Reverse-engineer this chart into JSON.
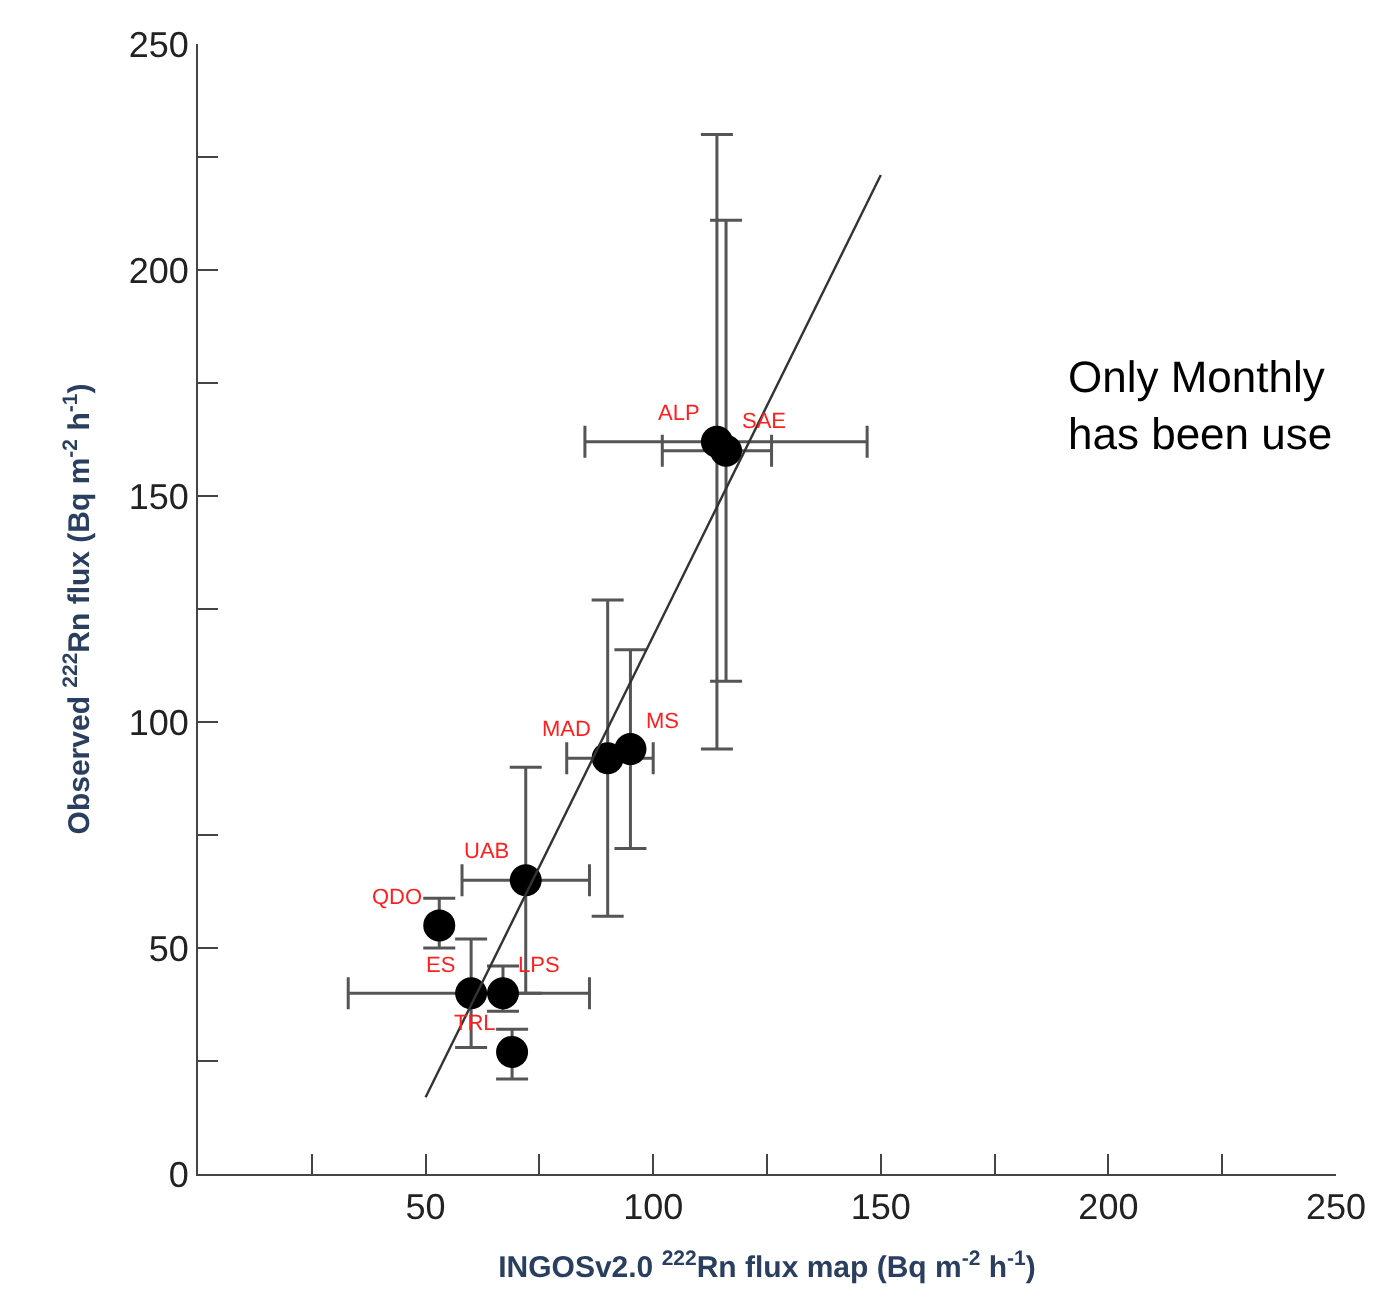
{
  "chart_data": {
    "type": "scatter",
    "xlabel": "INGOSv2.0 $^{222}$Rn flux map (Bq m$^{-2}$ h$^{-1}$)",
    "ylabel": "Observed $^{222}$Rn flux (Bq m$^{-2}$ h$^{-1}$)",
    "xlim": [
      0,
      250
    ],
    "ylim": [
      0,
      250
    ],
    "xticks": [
      {
        "value": 25,
        "label": null
      },
      50,
      {
        "value": 75,
        "label": null
      },
      100,
      {
        "value": 125,
        "label": null
      },
      150,
      {
        "value": 175,
        "label": null
      },
      200,
      {
        "value": 225,
        "label": null
      },
      250
    ],
    "yticks": [
      0,
      {
        "value": 25,
        "label": null
      },
      50,
      {
        "value": 75,
        "label": null
      },
      100,
      {
        "value": 125,
        "label": null
      },
      150,
      {
        "value": 175,
        "label": null
      },
      200,
      {
        "value": 225,
        "label": null
      },
      250
    ],
    "grid": false,
    "marker": "circle",
    "series": [
      {
        "color": "#000000",
        "x": [
          114,
          116,
          90,
          95,
          72,
          53,
          60,
          67,
          69
        ],
        "values": [
          162,
          160,
          92,
          94,
          65,
          55,
          40,
          40,
          27
        ],
        "errors": [
          [
            94,
            230
          ],
          [
            109,
            211
          ],
          [
            57,
            127
          ],
          [
            72,
            116
          ],
          [
            40,
            90
          ],
          [
            50,
            61
          ],
          [
            28,
            52
          ],
          [
            36,
            46
          ],
          [
            21,
            32
          ]
        ],
        "xerrors": [
          [
            85,
            147
          ],
          [
            102,
            126
          ],
          [
            81,
            100
          ],
          null,
          [
            58,
            86
          ],
          null,
          [
            33,
            86
          ],
          null,
          null
        ]
      },
      {
        "type": "line",
        "color": "#333333",
        "marker": "none",
        "x": [
          50,
          150
        ],
        "values": [
          17,
          221
        ]
      }
    ],
    "annotations": [
      {
        "text": "ALP",
        "x": 114,
        "y": 162
      },
      {
        "text": "SAE",
        "x": 116,
        "y": 160
      },
      {
        "text": "MAD",
        "x": 90,
        "y": 92
      },
      {
        "text": "MS",
        "x": 95,
        "y": 94
      },
      {
        "text": "UAB",
        "x": 72,
        "y": 65
      },
      {
        "text": "QDO",
        "x": 53,
        "y": 55
      },
      {
        "text": "ES",
        "x": 60,
        "y": 40
      },
      {
        "text": "LPS",
        "x": 67,
        "y": 40
      },
      {
        "text": "TRL",
        "x": 69,
        "y": 27
      },
      "Only Monthly\nhas been use"
    ]
  }
}
